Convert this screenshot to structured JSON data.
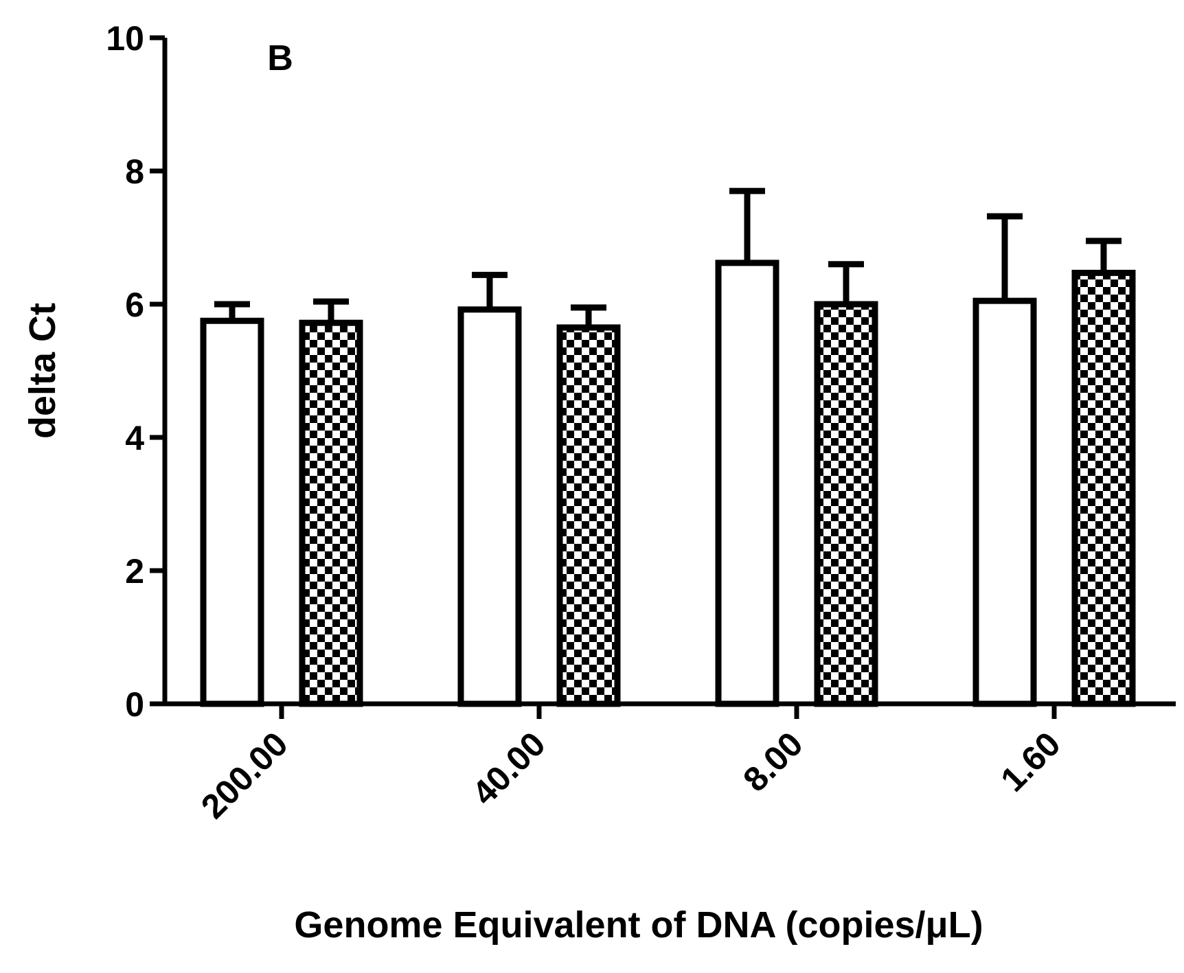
{
  "chart_data": {
    "type": "bar",
    "panel_label": "B",
    "xlabel": "Genome Equivalent of DNA (copies/μL)",
    "ylabel": "delta Ct",
    "ylim": [
      0,
      10
    ],
    "yticks": [
      "0",
      "2",
      "4",
      "6",
      "8",
      "10"
    ],
    "categories": [
      "200.00",
      "40.00",
      "8.00",
      "1.60"
    ],
    "grid": false,
    "series": [
      {
        "style": "open",
        "values": [
          5.75,
          5.92,
          6.62,
          6.05
        ],
        "errors": [
          0.25,
          0.52,
          1.08,
          1.27
        ]
      },
      {
        "style": "checkered",
        "values": [
          5.72,
          5.65,
          6.0,
          6.47
        ],
        "errors": [
          0.32,
          0.3,
          0.6,
          0.48
        ]
      }
    ]
  }
}
